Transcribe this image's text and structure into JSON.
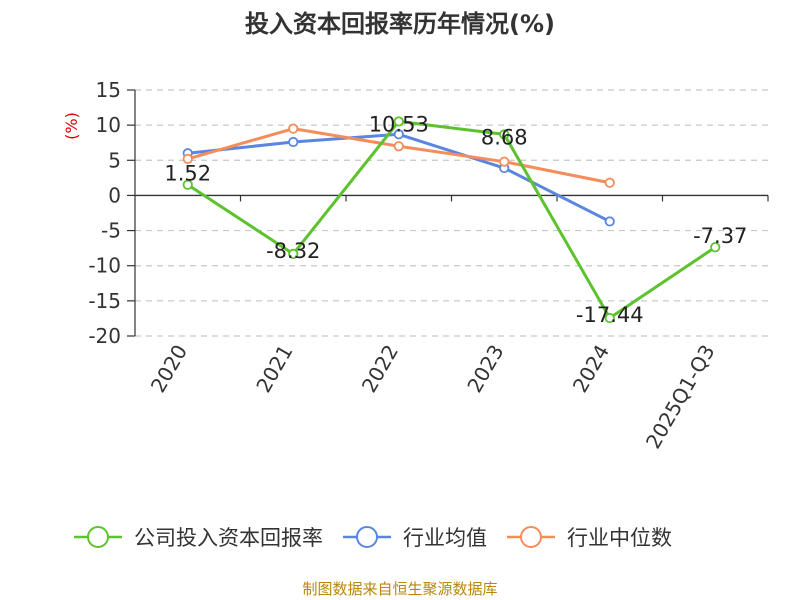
{
  "chart_data": {
    "type": "line",
    "title": "投入资本回报率历年情况(%)",
    "ylabel": "(%)",
    "xlabel": "",
    "categories": [
      "2020",
      "2021",
      "2022",
      "2023",
      "2024",
      "2025Q1-Q3"
    ],
    "ylim": [
      -20,
      15
    ],
    "yticks": [
      15,
      10,
      5,
      0,
      -5,
      -10,
      -15,
      -20
    ],
    "grid": true,
    "legend_position": "bottom",
    "series": [
      {
        "name": "公司投入资本回报率",
        "color": "#5cc22e",
        "values": [
          1.52,
          -8.32,
          10.53,
          8.68,
          -17.44,
          -7.37
        ],
        "labels": [
          "1.52",
          "-8.32",
          "10.53",
          "8.68",
          "-17.44",
          "-7.37"
        ]
      },
      {
        "name": "行业均值",
        "color": "#5b86e0",
        "values": [
          6.0,
          7.6,
          8.7,
          3.9,
          -3.7,
          null
        ]
      },
      {
        "name": "行业中位数",
        "color": "#f58d5b",
        "values": [
          5.2,
          9.5,
          7.0,
          4.8,
          1.8,
          null
        ]
      }
    ]
  },
  "source": "制图数据来自恒生聚源数据库"
}
